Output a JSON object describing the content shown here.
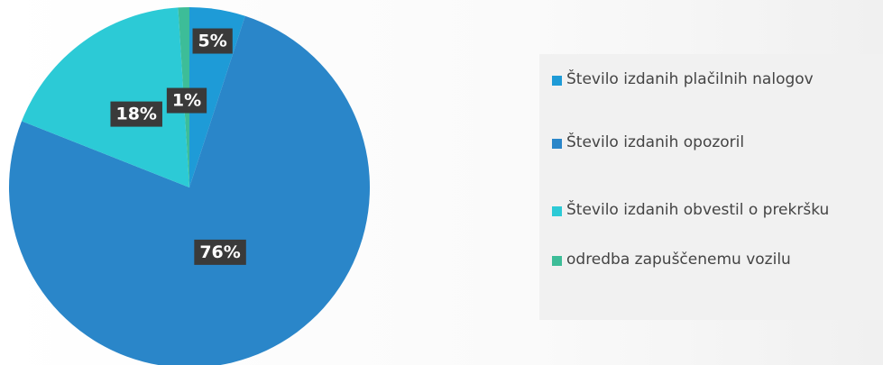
{
  "chart_data": {
    "type": "pie",
    "categories": [
      "Število izdanih plačilnih nalogov",
      "Število izdanih opozoril",
      "Število izdanih obvestil o prekršku",
      "odredba zapuščenemu vozilu"
    ],
    "values": [
      5,
      76,
      18,
      1
    ],
    "value_labels": [
      "5%",
      "76%",
      "18%",
      "1%"
    ],
    "colors": [
      "#1e9bd7",
      "#2a86c9",
      "#2ccad6",
      "#3dbd98"
    ]
  }
}
